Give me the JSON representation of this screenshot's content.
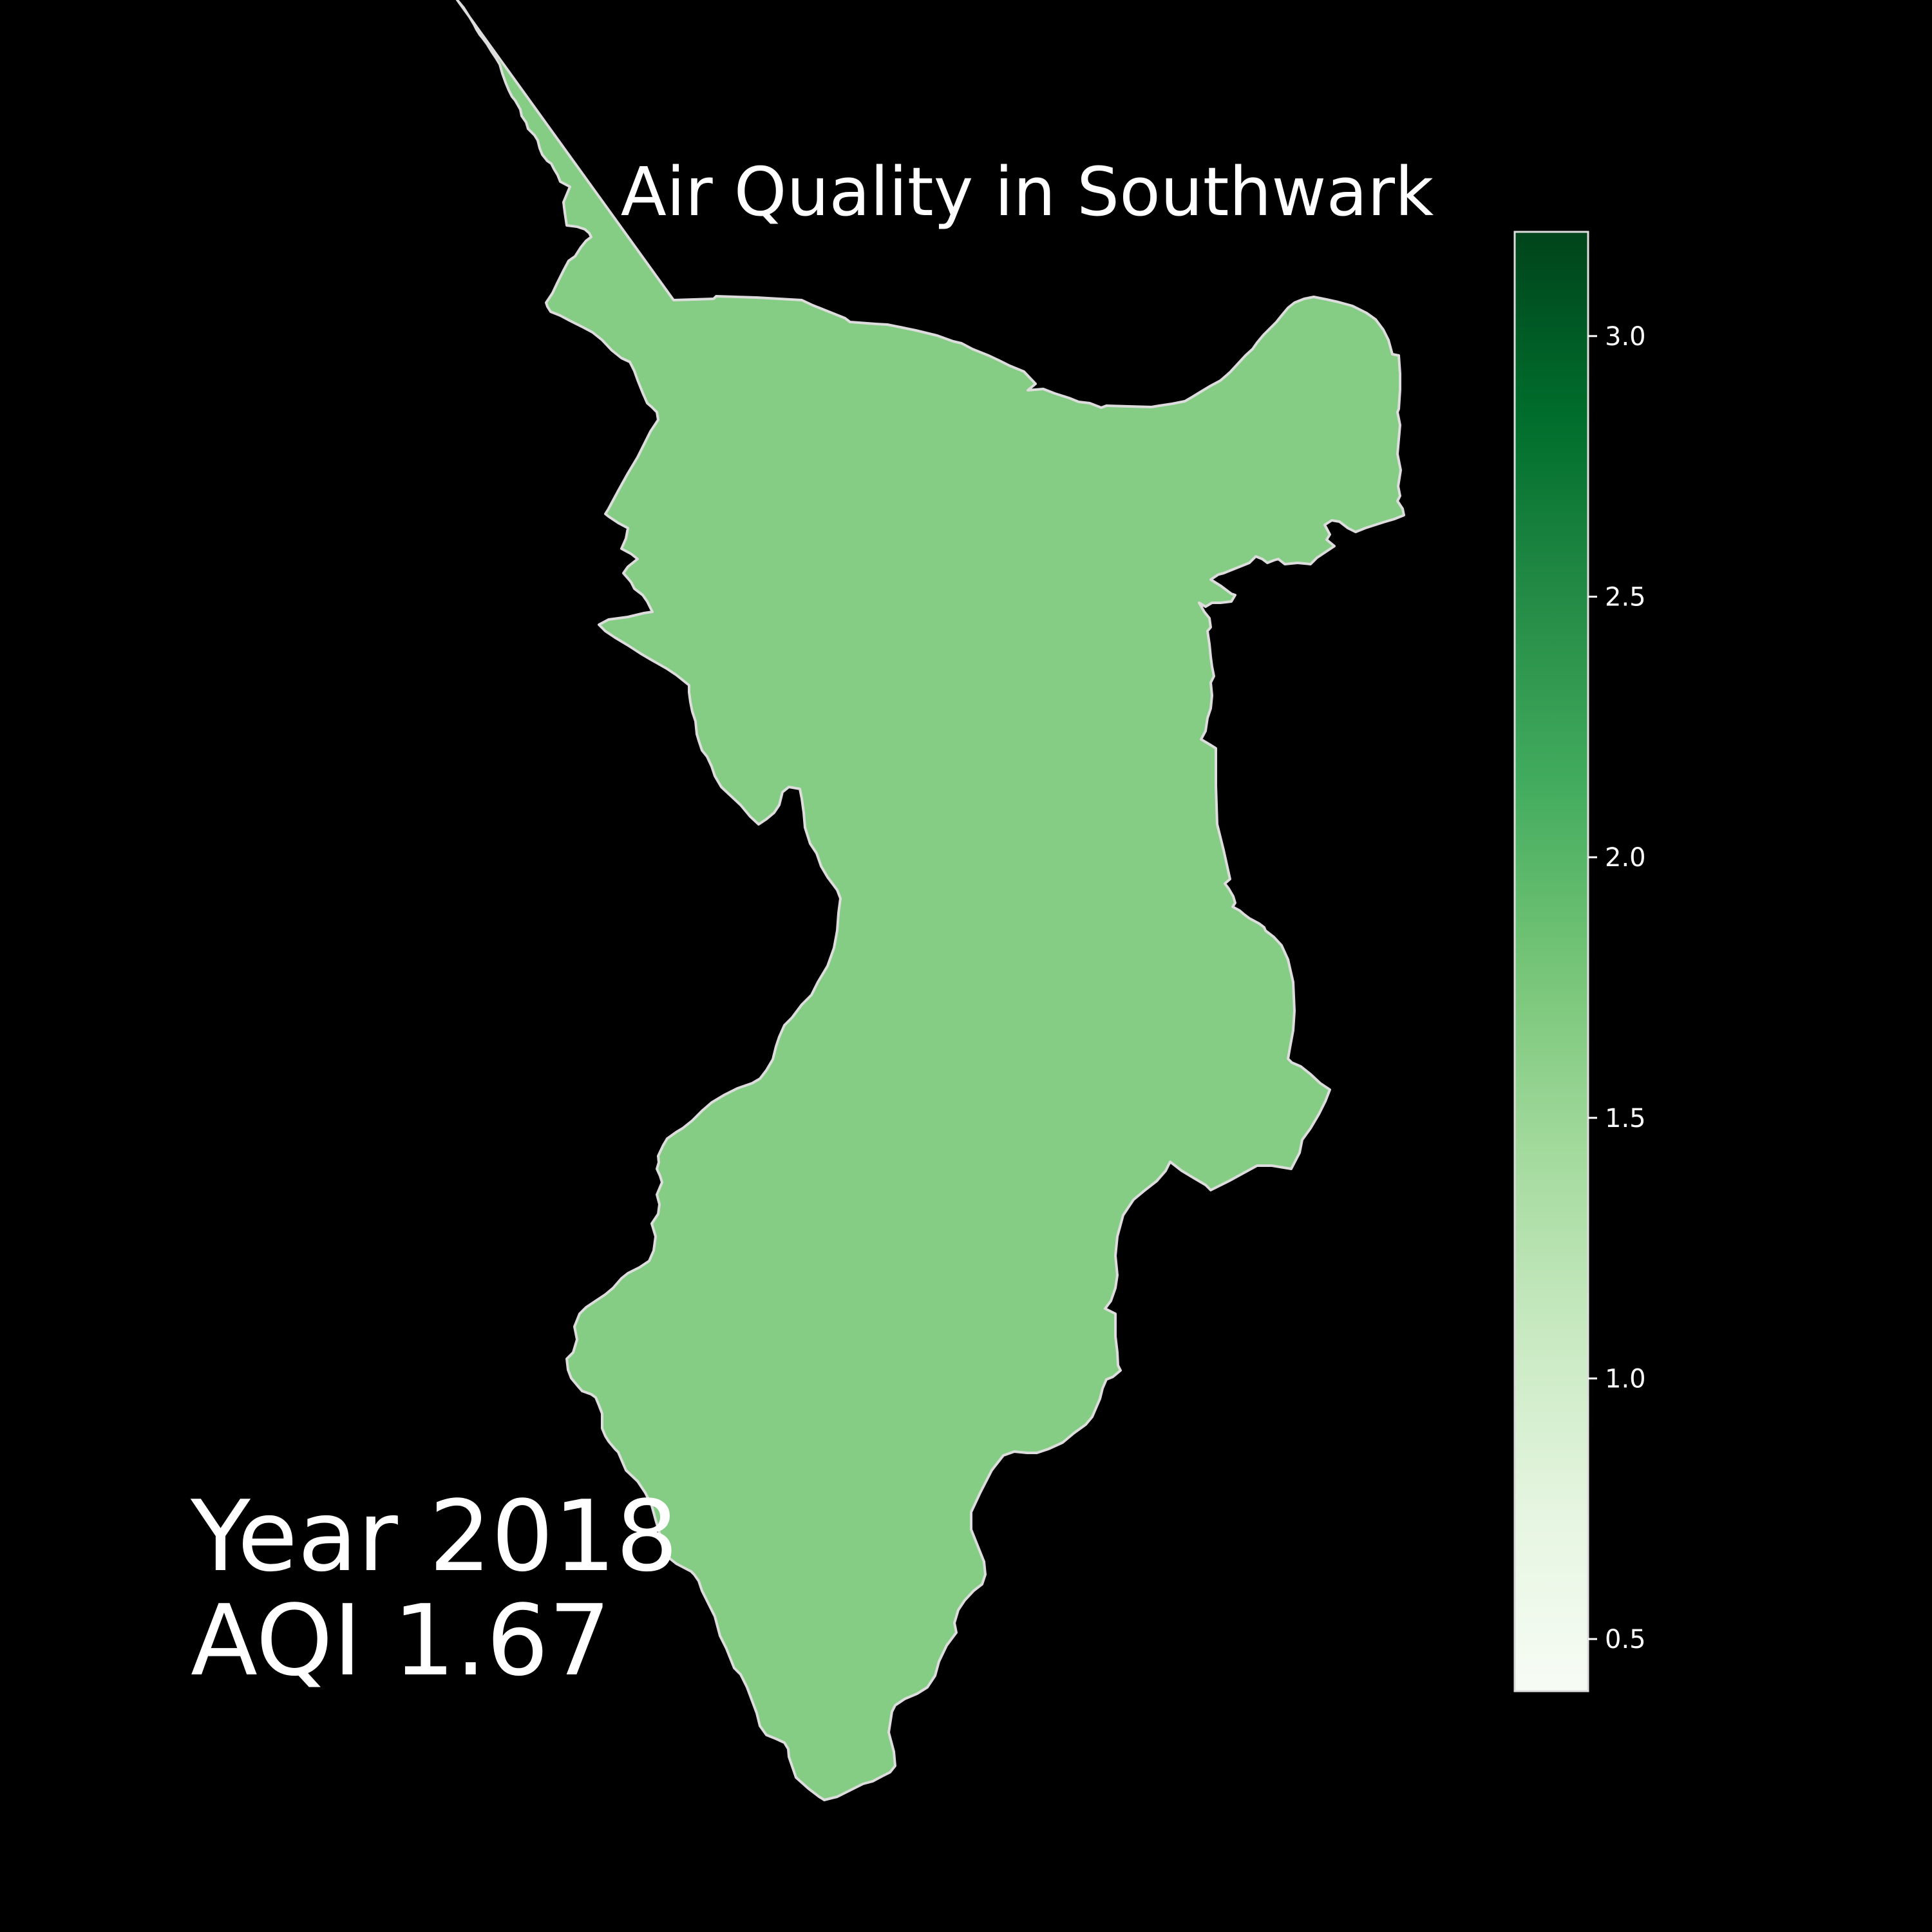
{
  "map": {
    "title": "Air Quality in Southwark",
    "region_value": 1.67,
    "region_outline_color": "#dddddd"
  },
  "annotation": {
    "year_text": "Year 2018",
    "aqi_text": "AQI 1.67"
  },
  "colorbar": {
    "colormap": "Greens",
    "range": [
      0.4,
      3.2
    ],
    "ticks": [
      {
        "value": 0.5,
        "label": "0.5"
      },
      {
        "value": 1.0,
        "label": "1.0"
      },
      {
        "value": 1.5,
        "label": "1.5"
      },
      {
        "value": 2.0,
        "label": "2.0"
      },
      {
        "value": 2.5,
        "label": "2.5"
      },
      {
        "value": 3.0,
        "label": "3.0"
      }
    ],
    "stops": [
      "#f7fcf5",
      "#e5f5e0",
      "#c7e9c0",
      "#a1d99b",
      "#74c476",
      "#41ab5d",
      "#238b45",
      "#006d2c",
      "#00441b"
    ]
  },
  "background_color": "#000000",
  "text_color": "#ffffff"
}
